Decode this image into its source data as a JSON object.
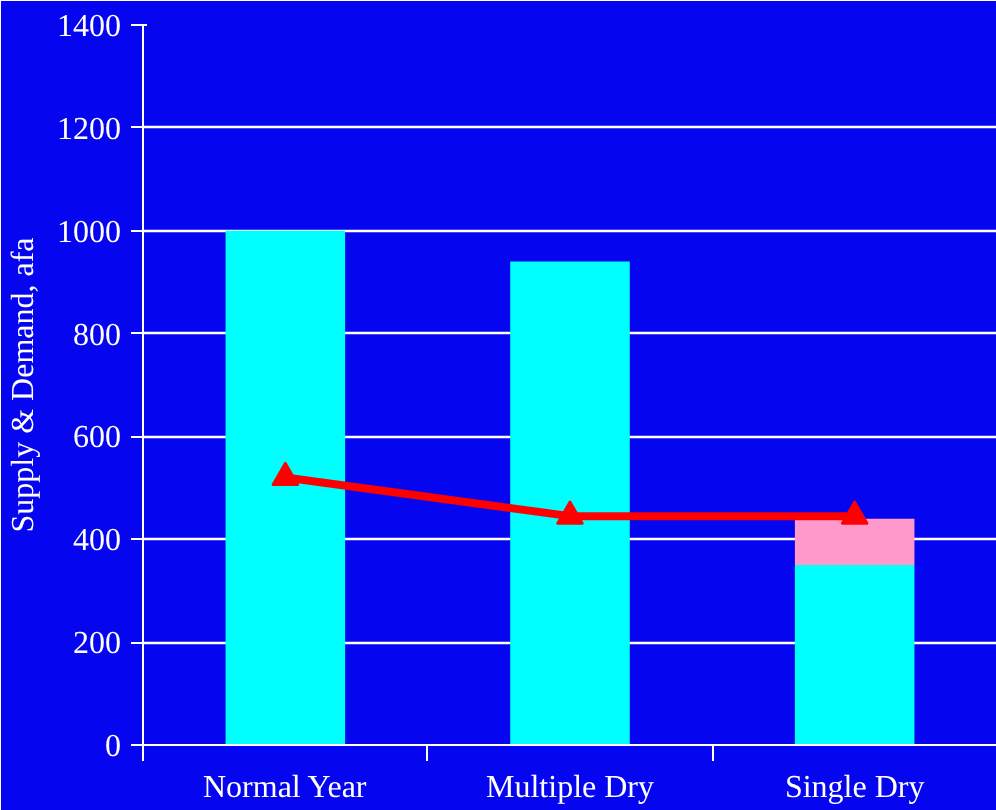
{
  "chart_data": {
    "type": "bar",
    "ylabel": "Supply & Demand, afa",
    "categories": [
      "Normal Year",
      "Multiple Dry",
      "Single Dry"
    ],
    "stacked": true,
    "ylim": [
      0,
      1400
    ],
    "yticks": [
      0,
      200,
      400,
      600,
      800,
      1000,
      1200,
      1400
    ],
    "grid": "y",
    "series": [
      {
        "color": "#00ffff",
        "values": [
          1000,
          940,
          350
        ]
      },
      {
        "color": "#ff99cc",
        "values": [
          null,
          null,
          90
        ]
      },
      {
        "type": "line",
        "color": "#ff0000",
        "values": [
          520,
          445,
          445
        ],
        "marker": "triangle",
        "line_style": "solid"
      }
    ]
  }
}
